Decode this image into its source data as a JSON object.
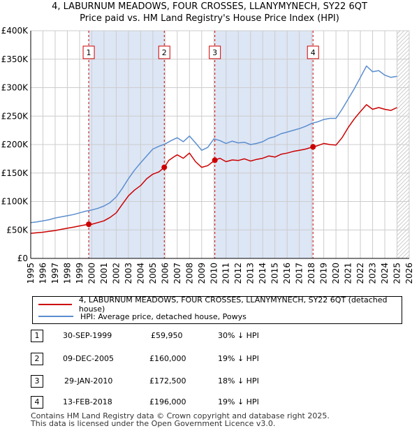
{
  "title_line1": "4, LABURNUM MEADOWS, FOUR CROSSES, LLANYMYNECH, SY22 6QT",
  "title_line2": "Price paid vs. HM Land Registry's House Price Index (HPI)",
  "colors": {
    "property": "#cc0000",
    "hpi": "#5b8ecf",
    "shade": "#dde6f5",
    "grid": "#cccccc",
    "vline": "#cc0000"
  },
  "chart_data": {
    "type": "line",
    "ylim": [
      0,
      400000
    ],
    "xlim": [
      1995,
      2026
    ],
    "y_ticks": [
      0,
      50000,
      100000,
      150000,
      200000,
      250000,
      300000,
      350000,
      400000
    ],
    "y_tick_labels": [
      "£0",
      "£50K",
      "£100K",
      "£150K",
      "£200K",
      "£250K",
      "£300K",
      "£350K",
      "£400K"
    ],
    "x_ticks": [
      1995,
      1996,
      1997,
      1998,
      1999,
      2000,
      2001,
      2002,
      2003,
      2004,
      2005,
      2006,
      2007,
      2008,
      2009,
      2010,
      2011,
      2012,
      2013,
      2014,
      2015,
      2016,
      2017,
      2018,
      2019,
      2020,
      2021,
      2022,
      2023,
      2024,
      2025,
      2026
    ],
    "x_tick_labels": [
      "1995",
      "1996",
      "1997",
      "1998",
      "1999",
      "2000",
      "2001",
      "2002",
      "2003",
      "2004",
      "2005",
      "2006",
      "2007",
      "2008",
      "2009",
      "2010",
      "2011",
      "2012",
      "2013",
      "2014",
      "2015",
      "2016",
      "2017",
      "2018",
      "2019",
      "2020",
      "2021",
      "2022",
      "2023",
      "2024",
      "2025",
      "2026"
    ],
    "shaded_periods": [
      [
        1999.75,
        2000.0
      ],
      [
        2005.94,
        2006.0
      ],
      [
        2010.08,
        2010.1
      ],
      [
        2018.12,
        2018.15
      ]
    ],
    "shade_spans": [
      [
        1999.75,
        2005.94
      ],
      [
        2010.08,
        2018.12
      ]
    ],
    "hatch_from": 2025.0,
    "series": [
      {
        "name": "property",
        "x": [
          1995.0,
          1995.5,
          1996.0,
          1996.5,
          1997.0,
          1997.5,
          1998.0,
          1998.5,
          1999.0,
          1999.5,
          1999.75,
          2000.0,
          2000.5,
          2001.0,
          2001.5,
          2002.0,
          2002.5,
          2003.0,
          2003.5,
          2004.0,
          2004.5,
          2005.0,
          2005.5,
          2005.94,
          2006.3,
          2006.7,
          2007.0,
          2007.5,
          2008.0,
          2008.5,
          2009.0,
          2009.5,
          2010.08,
          2010.5,
          2011.0,
          2011.5,
          2012.0,
          2012.5,
          2013.0,
          2013.5,
          2014.0,
          2014.5,
          2015.0,
          2015.5,
          2016.0,
          2016.5,
          2017.0,
          2017.5,
          2018.12,
          2018.5,
          2019.0,
          2019.5,
          2020.0,
          2020.5,
          2021.0,
          2021.5,
          2022.0,
          2022.5,
          2023.0,
          2023.5,
          2024.0,
          2024.5,
          2025.0
        ],
        "values": [
          44000,
          45000,
          46000,
          47500,
          49000,
          51000,
          53000,
          55000,
          57000,
          59000,
          59950,
          60000,
          63000,
          66000,
          72000,
          80000,
          95000,
          110000,
          120000,
          128000,
          140000,
          148000,
          152000,
          160000,
          172000,
          178000,
          182000,
          176000,
          185000,
          170000,
          160000,
          163000,
          172500,
          176000,
          170000,
          173000,
          172000,
          175000,
          171000,
          174000,
          176000,
          180000,
          178000,
          183000,
          185000,
          188000,
          190000,
          192000,
          196000,
          198000,
          202000,
          200000,
          199000,
          212000,
          230000,
          245000,
          258000,
          270000,
          262000,
          265000,
          262000,
          260000,
          265000
        ]
      },
      {
        "name": "hpi",
        "x": [
          1995.0,
          1995.5,
          1996.0,
          1996.5,
          1997.0,
          1997.5,
          1998.0,
          1998.5,
          1999.0,
          1999.5,
          2000.0,
          2000.5,
          2001.0,
          2001.5,
          2002.0,
          2002.5,
          2003.0,
          2003.5,
          2004.0,
          2004.5,
          2005.0,
          2005.5,
          2006.0,
          2006.5,
          2007.0,
          2007.5,
          2008.0,
          2008.5,
          2009.0,
          2009.5,
          2010.0,
          2010.5,
          2011.0,
          2011.5,
          2012.0,
          2012.5,
          2013.0,
          2013.5,
          2014.0,
          2014.5,
          2015.0,
          2015.5,
          2016.0,
          2016.5,
          2017.0,
          2017.5,
          2018.0,
          2018.5,
          2019.0,
          2019.5,
          2020.0,
          2020.5,
          2021.0,
          2021.5,
          2022.0,
          2022.5,
          2023.0,
          2023.5,
          2024.0,
          2024.5,
          2025.0
        ],
        "values": [
          63000,
          64000,
          66000,
          68000,
          71000,
          73000,
          75000,
          77000,
          80000,
          83000,
          85000,
          88000,
          92000,
          98000,
          108000,
          123000,
          140000,
          155000,
          168000,
          180000,
          192000,
          197000,
          201000,
          207000,
          212000,
          205000,
          215000,
          203000,
          190000,
          195000,
          210000,
          207000,
          202000,
          206000,
          203000,
          204000,
          200000,
          202000,
          205000,
          211000,
          214000,
          219000,
          222000,
          225000,
          228000,
          232000,
          237000,
          240000,
          244000,
          246000,
          246000,
          262000,
          280000,
          298000,
          318000,
          338000,
          328000,
          330000,
          322000,
          318000,
          320000
        ]
      }
    ],
    "markers": [
      {
        "label": "1",
        "x": 1999.75,
        "y": 59950
      },
      {
        "label": "2",
        "x": 2005.94,
        "y": 160000
      },
      {
        "label": "3",
        "x": 2010.08,
        "y": 172500
      },
      {
        "label": "4",
        "x": 2018.12,
        "y": 196000
      }
    ],
    "legend": [
      {
        "label": "4, LABURNUM MEADOWS, FOUR CROSSES, LLANYMYNECH, SY22 6QT (detached house)",
        "series": "property"
      },
      {
        "label": "HPI: Average price, detached house, Powys",
        "series": "hpi"
      }
    ]
  },
  "transactions": [
    {
      "num": "1",
      "date": "30-SEP-1999",
      "price": "£59,950",
      "pct": "30% ↓ HPI"
    },
    {
      "num": "2",
      "date": "09-DEC-2005",
      "price": "£160,000",
      "pct": "19% ↓ HPI"
    },
    {
      "num": "3",
      "date": "29-JAN-2010",
      "price": "£172,500",
      "pct": "18% ↓ HPI"
    },
    {
      "num": "4",
      "date": "13-FEB-2018",
      "price": "£196,000",
      "pct": "19% ↓ HPI"
    }
  ],
  "footer_line1": "Contains HM Land Registry data © Crown copyright and database right 2025.",
  "footer_line2": "This data is licensed under the Open Government Licence v3.0."
}
